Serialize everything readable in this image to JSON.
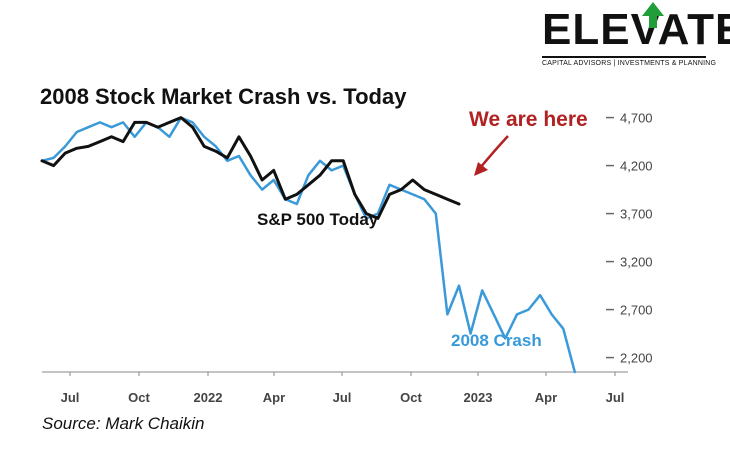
{
  "logo": {
    "word": "ELEVATE",
    "tagline": "CAPITAL ADVISORS | INVESTMENTS & PLANNING",
    "accent_color": "#1f9e3a"
  },
  "source": "Source: Mark Chaikin",
  "chart_data": {
    "type": "line",
    "title": "2008 Stock Market Crash vs. Today",
    "x_tick_labels": [
      "Jul",
      "Oct",
      "2022",
      "Apr",
      "Jul",
      "Oct",
      "2023",
      "Apr",
      "Jul"
    ],
    "y_ticks": [
      4700,
      4200,
      3700,
      3200,
      2700,
      2200
    ],
    "y_tick_labels": [
      "4,700",
      "4,200",
      "3,700",
      "3,200",
      "2,700",
      "2,200"
    ],
    "ylim": [
      2050,
      4800
    ],
    "xlim": [
      0,
      24
    ],
    "grid": false,
    "annotations": [
      {
        "text": "We are here",
        "color": "#b22222"
      }
    ],
    "series": [
      {
        "name": "S&P 500 Today",
        "color": "#111111",
        "x": [
          0,
          0.5,
          1,
          1.5,
          2,
          2.5,
          3,
          3.5,
          4,
          4.5,
          5,
          5.5,
          6,
          6.5,
          7,
          7.5,
          8,
          8.5,
          9,
          9.5,
          10,
          10.5,
          11,
          11.5,
          12,
          12.5,
          13,
          13.5,
          14,
          14.5,
          15,
          15.5,
          16,
          16.5,
          17,
          17.5,
          18
        ],
        "y": [
          4250,
          4200,
          4330,
          4380,
          4400,
          4450,
          4500,
          4450,
          4650,
          4650,
          4600,
          4650,
          4700,
          4600,
          4400,
          4350,
          4280,
          4500,
          4300,
          4050,
          4150,
          3850,
          3900,
          4000,
          4100,
          4250,
          4250,
          3900,
          3700,
          3650,
          3900,
          3950,
          4050,
          3950,
          3900,
          3850,
          3800
        ]
      },
      {
        "name": "2008 Crash",
        "color": "#3a9ad9",
        "x": [
          0,
          0.5,
          1,
          1.5,
          2,
          2.5,
          3,
          3.5,
          4,
          4.5,
          5,
          5.5,
          6,
          6.5,
          7,
          7.5,
          8,
          8.5,
          9,
          9.5,
          10,
          10.5,
          11,
          11.5,
          12,
          12.5,
          13,
          13.5,
          14,
          14.5,
          15,
          15.5,
          16,
          16.5,
          17,
          17.5,
          18,
          18.5,
          19,
          19.5,
          20,
          20.5,
          21,
          21.5,
          22,
          22.5,
          23
        ],
        "y": [
          4250,
          4280,
          4400,
          4550,
          4600,
          4650,
          4600,
          4650,
          4500,
          4650,
          4600,
          4500,
          4700,
          4650,
          4500,
          4400,
          4250,
          4300,
          4100,
          3950,
          4050,
          3850,
          3800,
          4100,
          4250,
          4150,
          4200,
          3900,
          3650,
          3700,
          4000,
          3950,
          3900,
          3850,
          3700,
          2650,
          2950,
          2450,
          2900,
          2650,
          2400,
          2650,
          2700,
          2850,
          2650,
          2500,
          2050
        ]
      }
    ],
    "series_labels": [
      "S&P 500 Today",
      "2008 Crash"
    ]
  }
}
